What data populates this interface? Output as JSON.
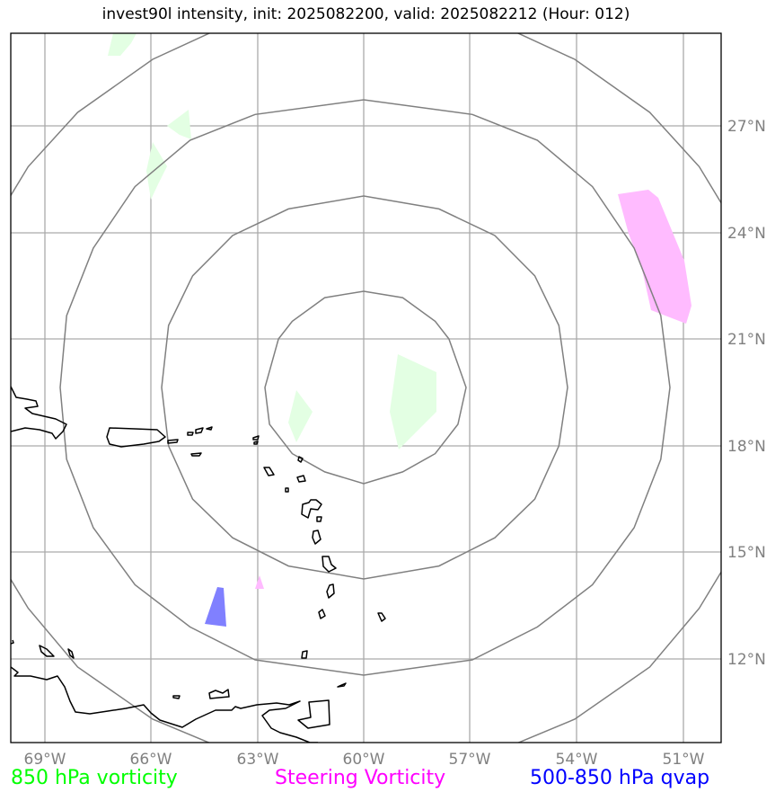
{
  "title": "invest90l intensity, init: 2025082200, valid: 2025082212 (Hour: 012)",
  "map": {
    "center_label": "60°W",
    "lon_ticks": [
      "69°W",
      "66°W",
      "63°W",
      "60°W",
      "57°W",
      "54°W",
      "51°W"
    ],
    "lat_ticks": [
      "27°N",
      "24°N",
      "21°N",
      "18°N",
      "15°N",
      "12°N"
    ],
    "range_rings": 4
  },
  "legend": {
    "vorticity_850": "850 hPa vorticity",
    "steering_vorticity": "Steering Vorticity",
    "qvap": "500-850 hPa qvap"
  },
  "colors": {
    "vorticity_850": "#00ff00",
    "vorticity_850_fill": "#e3ffe3",
    "steering_vorticity": "#ff00ff",
    "steering_fill": "#ffbbff",
    "qvap": "#0000ff",
    "qvap_fill": "#8080ff",
    "rings": "#808080",
    "grid": "#aaaaaa",
    "coast": "#000000"
  }
}
